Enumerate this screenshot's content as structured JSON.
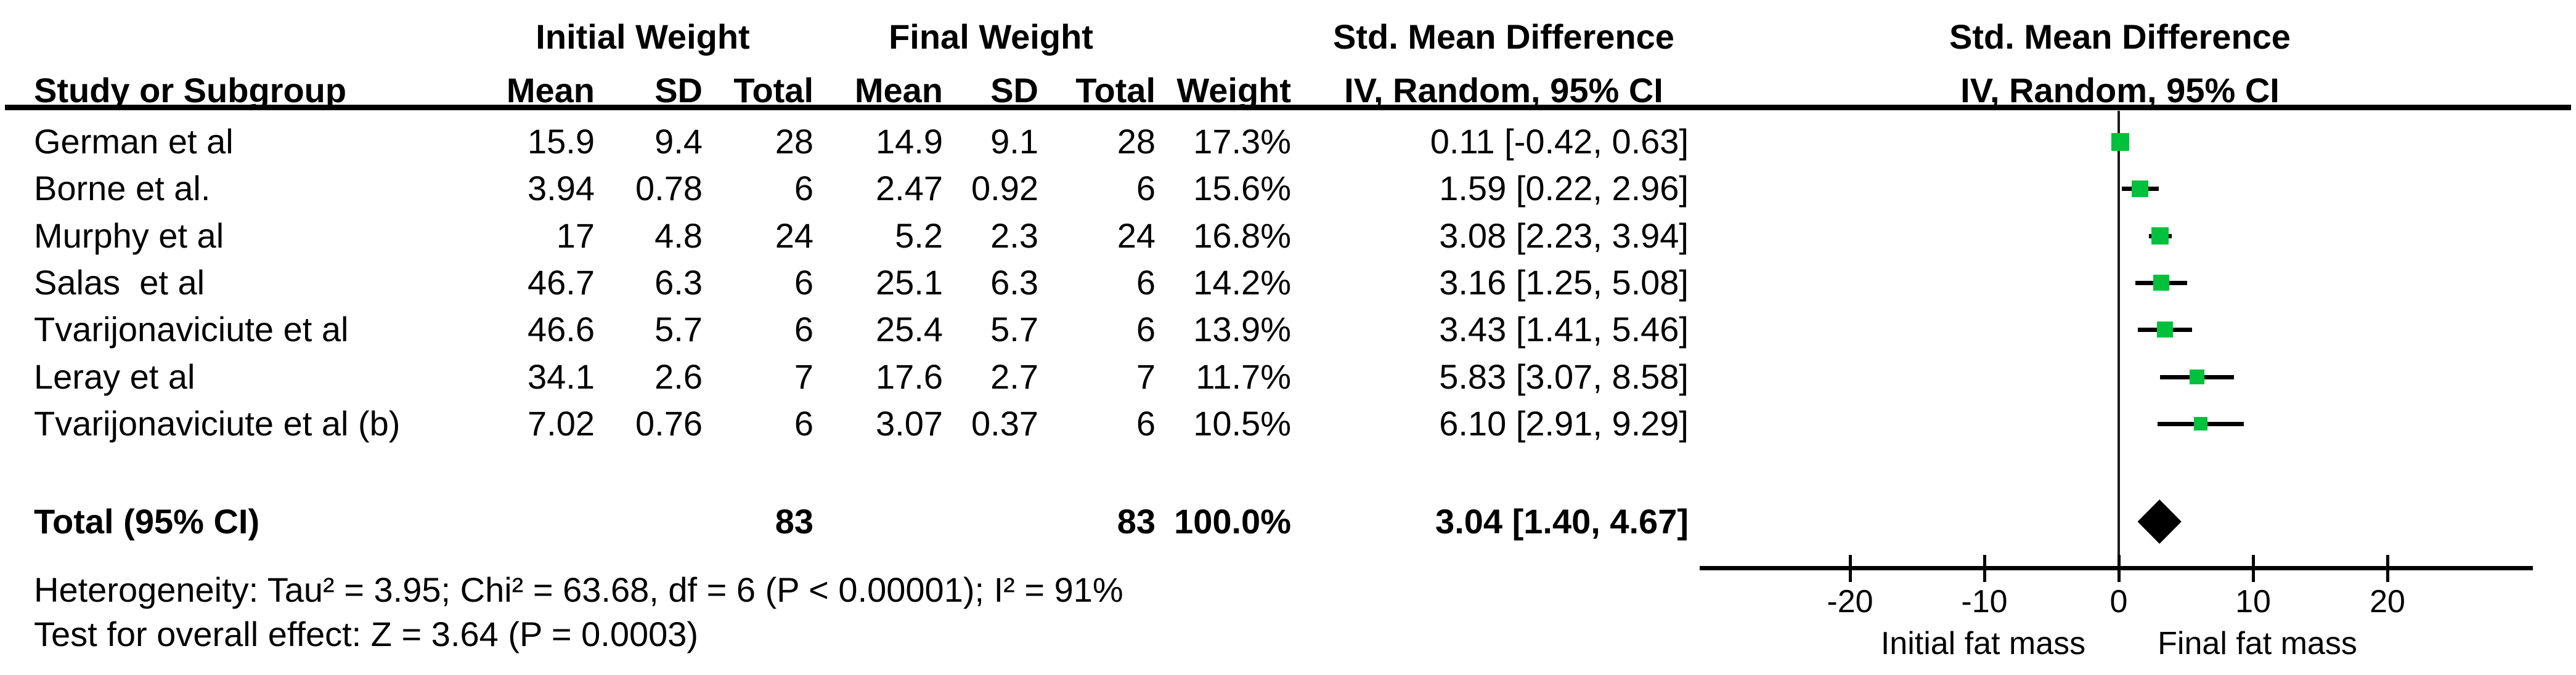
{
  "header": {
    "row1": {
      "initial_group": "Initial Weight",
      "final_group": "Final Weight",
      "smd_table": "Std. Mean Difference",
      "smd_plot": "Std. Mean Difference"
    },
    "row2": {
      "study": "Study or Subgroup",
      "mean_initial": "Mean",
      "sd_initial": "SD",
      "total_initial": "Total",
      "mean_final": "Mean",
      "sd_final": "SD",
      "total_final": "Total",
      "weight": "Weight",
      "iv_table": "IV, Random, 95% CI",
      "iv_plot": "IV, Random, 95% CI"
    }
  },
  "total_row": {
    "label": "Total (95% CI)",
    "initial_total": "83",
    "final_total": "83",
    "weight": "100.0%",
    "smd_ci": "3.04 [1.40, 4.67]"
  },
  "footer": {
    "heterogeneity": "Heterogeneity: Tau² = 3.95; Chi² = 63.68, df = 6 (P < 0.00001); I² = 91%",
    "overall_effect": "Test for overall effect: Z = 3.64 (P = 0.0003)"
  },
  "chart_data": {
    "type": "forest",
    "effect_measure": "Std. Mean Difference, IV, Random, 95% CI",
    "xlim": [
      -31,
      31
    ],
    "ticks": [
      -20,
      -10,
      0,
      10,
      20
    ],
    "axis_label_left": "Initial fat mass",
    "axis_label_right": "Final fat mass",
    "marker_color": "#00c13b",
    "diamond_color": "#000000",
    "studies": [
      {
        "name": "German et al",
        "initial": {
          "mean": "15.9",
          "sd": "9.4",
          "total": "28"
        },
        "final": {
          "mean": "14.9",
          "sd": "9.1",
          "total": "28"
        },
        "weight": "17.3%",
        "smd_ci": "0.11 [-0.42, 0.63]",
        "est": 0.11,
        "lo": -0.42,
        "hi": 0.63,
        "w": 17.3
      },
      {
        "name": "Borne et al.",
        "initial": {
          "mean": "3.94",
          "sd": "0.78",
          "total": "6"
        },
        "final": {
          "mean": "2.47",
          "sd": "0.92",
          "total": "6"
        },
        "weight": "15.6%",
        "smd_ci": "1.59 [0.22, 2.96]",
        "est": 1.59,
        "lo": 0.22,
        "hi": 2.96,
        "w": 15.6
      },
      {
        "name": "Murphy et al",
        "initial": {
          "mean": "17",
          "sd": "4.8",
          "total": "24"
        },
        "final": {
          "mean": "5.2",
          "sd": "2.3",
          "total": "24"
        },
        "weight": "16.8%",
        "smd_ci": "3.08 [2.23, 3.94]",
        "est": 3.08,
        "lo": 2.23,
        "hi": 3.94,
        "w": 16.8
      },
      {
        "name": "Salas  et al",
        "initial": {
          "mean": "46.7",
          "sd": "6.3",
          "total": "6"
        },
        "final": {
          "mean": "25.1",
          "sd": "6.3",
          "total": "6"
        },
        "weight": "14.2%",
        "smd_ci": "3.16 [1.25, 5.08]",
        "est": 3.16,
        "lo": 1.25,
        "hi": 5.08,
        "w": 14.2
      },
      {
        "name": "Tvarijonaviciute et al",
        "initial": {
          "mean": "46.6",
          "sd": "5.7",
          "total": "6"
        },
        "final": {
          "mean": "25.4",
          "sd": "5.7",
          "total": "6"
        },
        "weight": "13.9%",
        "smd_ci": "3.43 [1.41, 5.46]",
        "est": 3.43,
        "lo": 1.41,
        "hi": 5.46,
        "w": 13.9
      },
      {
        "name": "Leray et al",
        "initial": {
          "mean": "34.1",
          "sd": "2.6",
          "total": "7"
        },
        "final": {
          "mean": "17.6",
          "sd": "2.7",
          "total": "7"
        },
        "weight": "11.7%",
        "smd_ci": "5.83 [3.07, 8.58]",
        "est": 5.83,
        "lo": 3.07,
        "hi": 8.58,
        "w": 11.7
      },
      {
        "name": "Tvarijonaviciute et al (b)",
        "initial": {
          "mean": "7.02",
          "sd": "0.76",
          "total": "6"
        },
        "final": {
          "mean": "3.07",
          "sd": "0.37",
          "total": "6"
        },
        "weight": "10.5%",
        "smd_ci": "6.10 [2.91, 9.29]",
        "est": 6.1,
        "lo": 2.91,
        "hi": 9.29,
        "w": 10.5
      }
    ],
    "total": {
      "est": 3.04,
      "lo": 1.4,
      "hi": 4.67
    }
  }
}
